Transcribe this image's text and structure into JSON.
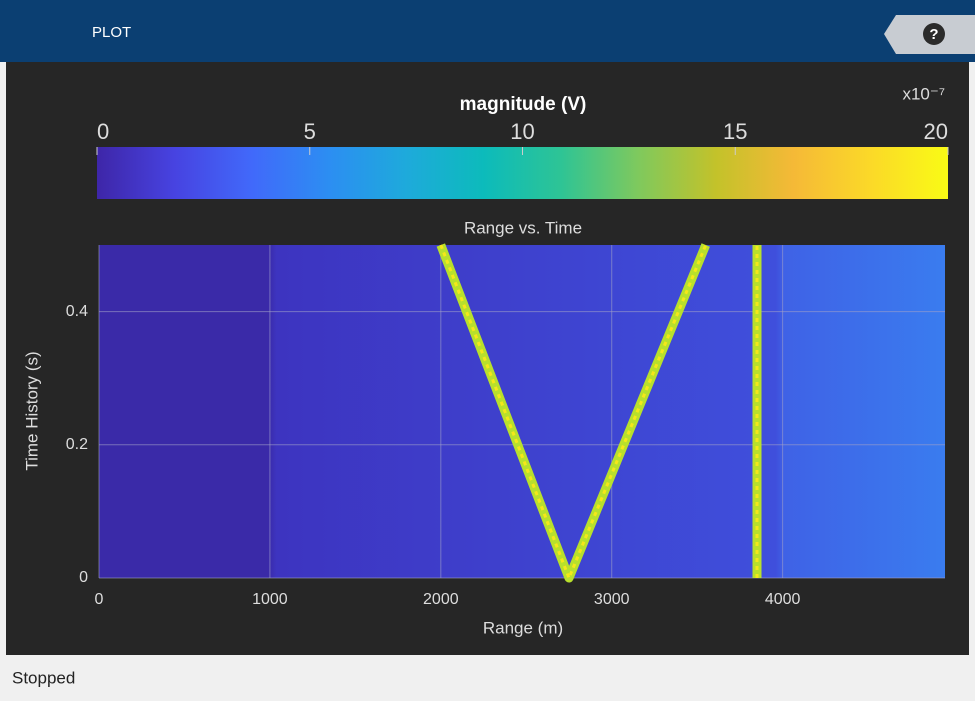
{
  "toolbar": {
    "tab": "PLOT",
    "help": "?"
  },
  "chart_data": {
    "type": "line",
    "title": "Range vs. Time",
    "xlabel": "Range (m)",
    "ylabel": "Time History (s)",
    "xlim": [
      0,
      4950
    ],
    "xticks": [
      0,
      1000,
      2000,
      3000,
      4000
    ],
    "ylim": [
      0,
      0.5
    ],
    "yticks": [
      0,
      0.2,
      0.4
    ],
    "grid": true,
    "series": [
      {
        "color": "#b8e02c",
        "x": [
          2000,
          2750,
          3550
        ],
        "values": [
          0.5,
          0,
          0.5
        ]
      },
      {
        "color": "#b8e02c",
        "x": [
          3850,
          3850
        ],
        "values": [
          0,
          0.5
        ]
      }
    ],
    "colorbar": {
      "title": "magnitude (V)",
      "exponent": "x10⁻⁷",
      "lim": [
        0,
        20
      ],
      "ticks": [
        0,
        5,
        10,
        15,
        20
      ],
      "colormap": [
        "#3e26a8",
        "#4743e1",
        "#4169fa",
        "#2c8ef2",
        "#1eaadb",
        "#0cbbbb",
        "#2ec495",
        "#7fc95d",
        "#c3c22a",
        "#f5b937",
        "#fbd928",
        "#f9fb15"
      ]
    }
  },
  "status": "Stopped"
}
